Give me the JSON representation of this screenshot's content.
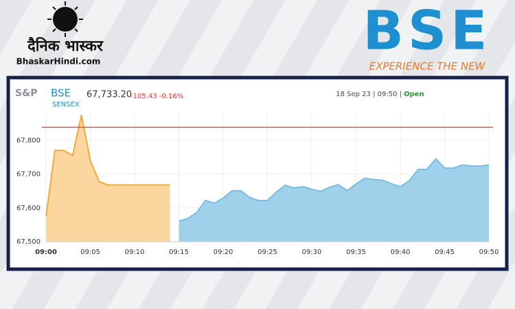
{
  "header": {
    "publisher": "दैनिक भास्कर",
    "site": "BhaskarHindi.com",
    "logo": "BSE",
    "tagline": "EXPERIENCE THE NEW"
  },
  "chart_data": {
    "type": "area",
    "brand": "S&P",
    "index_logo": "BSE",
    "title": "SENSEX",
    "last_price": "67,733.20",
    "change": "-105.43 -0.16%",
    "timestamp": "18 Sep 23 | 09:50 |",
    "status": "Open",
    "categories": [
      "09:00",
      null,
      null,
      null,
      null,
      "09:05",
      null,
      null,
      null,
      null,
      "09:10",
      null,
      null,
      null,
      null,
      "09:15",
      null,
      null,
      null,
      null,
      "09:20",
      null,
      null,
      null,
      null,
      "09:25",
      null,
      null,
      null,
      null,
      "09:30",
      null,
      null,
      null,
      null,
      "09:35",
      null,
      null,
      null,
      null,
      "09:40",
      null,
      null,
      null,
      null,
      "09:45",
      null,
      null,
      null,
      null,
      "09:50"
    ],
    "series": [
      {
        "color": "#f2a93b",
        "fill": "#fbd79f",
        "values": [
          67575,
          67770,
          67770,
          67755,
          67875,
          67740,
          67678,
          67668,
          67668,
          67668,
          67668,
          67668,
          67668,
          67668,
          67668,
          null,
          null,
          null,
          null,
          null,
          null,
          null,
          null,
          null,
          null,
          null,
          null,
          null,
          null,
          null,
          null,
          null,
          null,
          null,
          null,
          null,
          null,
          null,
          null,
          null,
          null,
          null,
          null,
          null,
          null,
          null,
          null,
          null,
          null,
          null,
          null
        ]
      },
      {
        "color": "#79bddf",
        "fill": "#9fd1ea",
        "values": [
          null,
          null,
          null,
          null,
          null,
          null,
          null,
          null,
          null,
          null,
          null,
          null,
          null,
          null,
          null,
          67561,
          67569,
          67586,
          67622,
          67614,
          67629,
          67651,
          67651,
          67631,
          67622,
          67622,
          67647,
          67667,
          67659,
          67663,
          67655,
          67649,
          67661,
          67669,
          67651,
          67671,
          67688,
          67684,
          67682,
          67671,
          67663,
          67680,
          67714,
          67714,
          67745,
          67718,
          67718,
          67727,
          67724,
          67724,
          67727
        ]
      }
    ],
    "reference_line": 67838.63,
    "reference_color": "#d9534f",
    "ylim": [
      67500,
      67880
    ],
    "yticks": [
      {
        "value": 67500,
        "label": "67,500"
      },
      {
        "value": 67600,
        "label": "67,600"
      },
      {
        "value": 67700,
        "label": "67,700"
      },
      {
        "value": 67800,
        "label": "67,800"
      }
    ],
    "grid": true
  }
}
